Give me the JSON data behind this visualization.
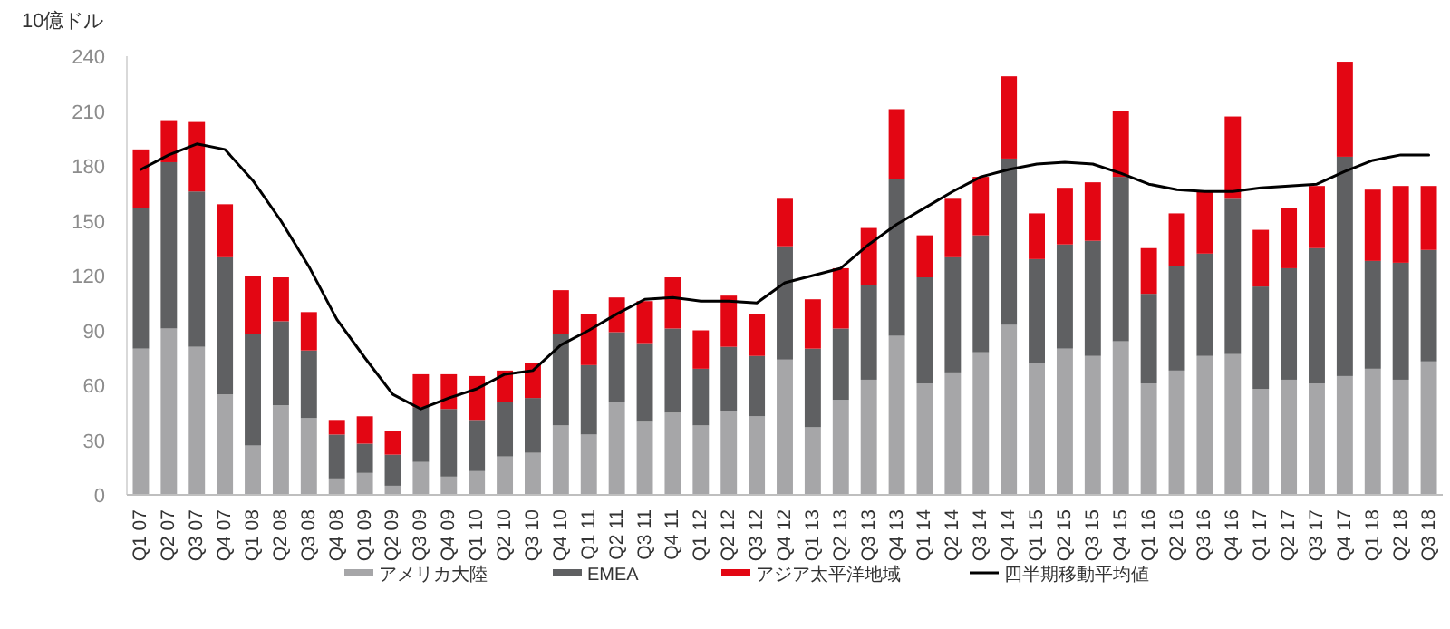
{
  "chart_data": {
    "type": "bar",
    "stacked": true,
    "ylabel": "10億ドル",
    "categories": [
      "Q1 07",
      "Q2 07",
      "Q3 07",
      "Q4 07",
      "Q1 08",
      "Q2 08",
      "Q3 08",
      "Q4 08",
      "Q1 09",
      "Q2 09",
      "Q3 09",
      "Q4 09",
      "Q1 10",
      "Q2 10",
      "Q3 10",
      "Q4 10",
      "Q1 11",
      "Q2 11",
      "Q3 11",
      "Q4 11",
      "Q1 12",
      "Q2 12",
      "Q3 12",
      "Q4 12",
      "Q1 13",
      "Q2 13",
      "Q3 13",
      "Q4 13",
      "Q1 14",
      "Q2 14",
      "Q3 14",
      "Q4 14",
      "Q1 15",
      "Q2 15",
      "Q3 15",
      "Q4 15",
      "Q1 16",
      "Q2 16",
      "Q3 16",
      "Q4 16",
      "Q1 17",
      "Q2 17",
      "Q3 17",
      "Q4 17",
      "Q1 18",
      "Q2 18",
      "Q3 18"
    ],
    "series": [
      {
        "name": "アメリカ大陸",
        "color": "#a6a6a8",
        "values": [
          80,
          91,
          81,
          55,
          27,
          49,
          42,
          9,
          12,
          5,
          18,
          10,
          13,
          21,
          23,
          38,
          33,
          51,
          40,
          45,
          38,
          46,
          43,
          74,
          37,
          52,
          63,
          87,
          61,
          67,
          78,
          93,
          72,
          80,
          76,
          84,
          61,
          68,
          76,
          77,
          58,
          63,
          61,
          65,
          69,
          63,
          73
        ]
      },
      {
        "name": "EMEA",
        "color": "#5f6062",
        "values": [
          77,
          91,
          85,
          75,
          61,
          46,
          37,
          24,
          16,
          17,
          30,
          37,
          28,
          30,
          30,
          50,
          38,
          38,
          43,
          46,
          31,
          35,
          33,
          62,
          43,
          39,
          52,
          86,
          58,
          63,
          64,
          91,
          57,
          57,
          63,
          90,
          49,
          57,
          56,
          85,
          56,
          61,
          74,
          120,
          59,
          64,
          61
        ]
      },
      {
        "name": "アジア太平洋地域",
        "color": "#e30613",
        "values": [
          32,
          23,
          38,
          29,
          32,
          24,
          21,
          8,
          15,
          13,
          18,
          19,
          24,
          17,
          19,
          24,
          28,
          19,
          23,
          28,
          21,
          28,
          23,
          26,
          27,
          33,
          31,
          38,
          23,
          32,
          32,
          45,
          25,
          31,
          32,
          36,
          25,
          29,
          34,
          45,
          31,
          33,
          34,
          52,
          39,
          42,
          35
        ]
      },
      {
        "name": "四半期移動平均値",
        "type": "line",
        "color": "#000000",
        "values": [
          178,
          186,
          192,
          189,
          172,
          150,
          125,
          96,
          75,
          55,
          47,
          53,
          58,
          66,
          68,
          82,
          90,
          99,
          107,
          108,
          106,
          106,
          105,
          116,
          120,
          124,
          137,
          148,
          157,
          166,
          174,
          178,
          181,
          182,
          181,
          176,
          170,
          167,
          166,
          166,
          168,
          169,
          170,
          177,
          183,
          186,
          186
        ]
      }
    ],
    "ylim": [
      0,
      240
    ],
    "yticks": [
      0,
      30,
      60,
      90,
      120,
      150,
      180,
      210,
      240
    ],
    "legend": "bottom"
  }
}
